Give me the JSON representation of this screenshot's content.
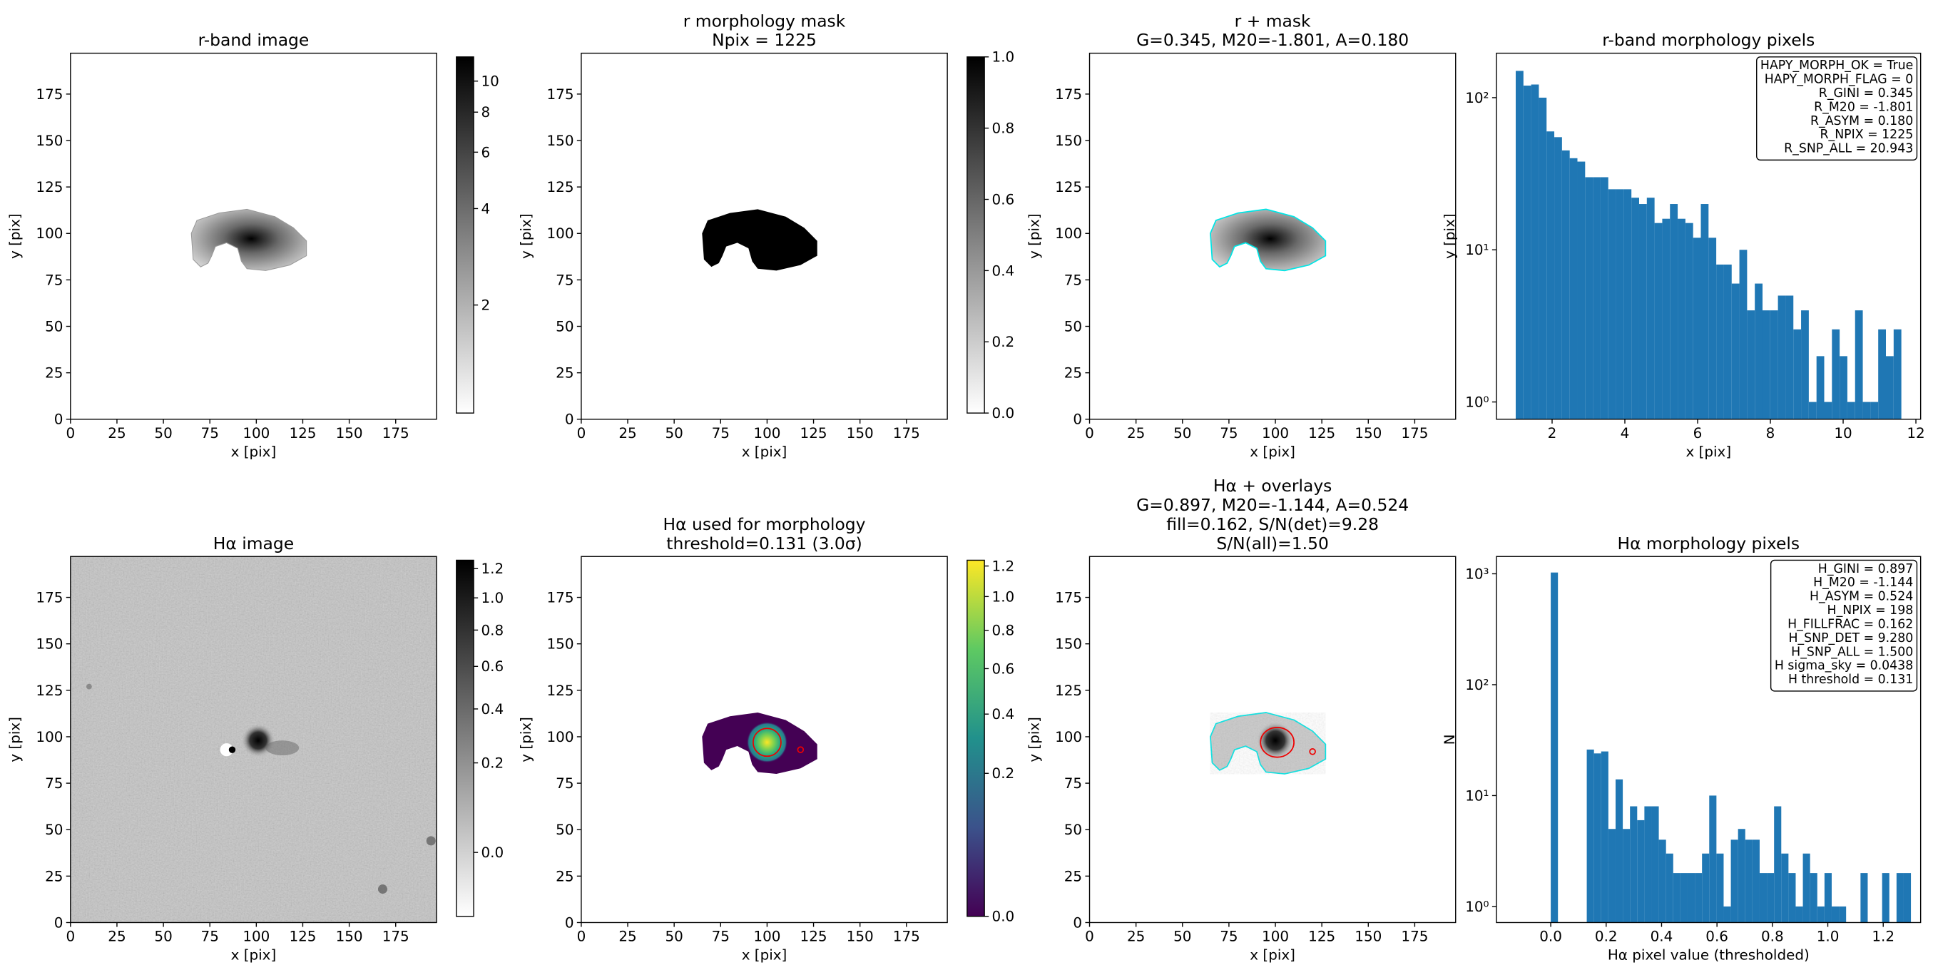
{
  "chart_data": [
    {
      "type": "image",
      "title": "r-band image",
      "xlabel": "x [pix]",
      "ylabel": "y [pix]",
      "xlim": [
        0,
        197
      ],
      "ylim": [
        0,
        197
      ],
      "xticks": [
        0,
        25,
        50,
        75,
        100,
        125,
        150,
        175
      ],
      "yticks": [
        0,
        25,
        50,
        75,
        100,
        125,
        150,
        175
      ],
      "colorbar": {
        "cmap": "gray_r",
        "scale": "log",
        "lim": [
          0.92,
          11.9
        ],
        "ticks": [
          2,
          4,
          6,
          8,
          10
        ]
      }
    },
    {
      "type": "image",
      "title": [
        "r morphology mask",
        "Npix = 1225"
      ],
      "xlabel": "x [pix]",
      "ylabel": "y [pix]",
      "xlim": [
        0,
        197
      ],
      "ylim": [
        0,
        197
      ],
      "xticks": [
        0,
        25,
        50,
        75,
        100,
        125,
        150,
        175
      ],
      "yticks": [
        0,
        25,
        50,
        75,
        100,
        125,
        150,
        175
      ],
      "colorbar": {
        "cmap": "gray_r",
        "scale": "linear",
        "lim": [
          0,
          1
        ],
        "ticks": [
          {
            "value": 0,
            "label": "0.0"
          },
          0.2,
          0.4,
          0.6,
          0.8,
          {
            "value": 1,
            "label": "1.0"
          }
        ]
      }
    },
    {
      "type": "image",
      "title": [
        "r + mask",
        "G=0.345, M20=-1.801, A=0.180"
      ],
      "xlabel": "x [pix]",
      "ylabel": "y [pix]",
      "xlim": [
        0,
        197
      ],
      "ylim": [
        0,
        197
      ],
      "xticks": [
        0,
        25,
        50,
        75,
        100,
        125,
        150,
        175
      ],
      "yticks": [
        0,
        25,
        50,
        75,
        100,
        125,
        150,
        175
      ]
    },
    {
      "type": "histogram",
      "title": "r-band morphology pixels",
      "xlabel": "x [pix]",
      "ylabel": "y [pix]",
      "color": "#1f77b4",
      "yscale": "log",
      "xlim": [
        0.47,
        12.13
      ],
      "ylim": [
        0.77,
        196
      ],
      "xticks": [
        2,
        4,
        6,
        8,
        10,
        12
      ],
      "yticks": [
        {
          "value": 1,
          "label": "10⁰"
        },
        {
          "value": 10,
          "label": "10¹"
        },
        {
          "value": 100,
          "label": "10²"
        }
      ],
      "bins": [
        1.0,
        1.212,
        1.424,
        1.636,
        1.848,
        2.06,
        2.272,
        2.484,
        2.696,
        2.908,
        3.12,
        3.332,
        3.544,
        3.756,
        3.968,
        4.18,
        4.392,
        4.604,
        4.816,
        5.028,
        5.24,
        5.452,
        5.664,
        5.876,
        6.088,
        6.3,
        6.512,
        6.724,
        6.936,
        7.148,
        7.36,
        7.572,
        7.784,
        7.996,
        8.208,
        8.42,
        8.632,
        8.844,
        9.056,
        9.268,
        9.48,
        9.692,
        9.904,
        10.116,
        10.328,
        10.54,
        10.752,
        10.964,
        11.176,
        11.388,
        11.6
      ],
      "counts": [
        150,
        120,
        122,
        100,
        60,
        55,
        45,
        40,
        38,
        30,
        30,
        30,
        25,
        25,
        25,
        22,
        20,
        22,
        15,
        16,
        20,
        16,
        15,
        12,
        20,
        12,
        8,
        8,
        6,
        10,
        4,
        6,
        4,
        4,
        5,
        5,
        3,
        4,
        1,
        2,
        1,
        3,
        2,
        1,
        4,
        1,
        1,
        3,
        2,
        3
      ],
      "annotation": [
        "HAPY_MORPH_OK = True",
        "HAPY_MORPH_FLAG = 0",
        "R_GINI = 0.345",
        "R_M20 = -1.801",
        "R_ASYM = 0.180",
        "R_NPIX = 1225",
        "R_SNP_ALL = 20.943"
      ]
    },
    {
      "type": "image",
      "title": "Hα image",
      "xlabel": "x [pix]",
      "ylabel": "y [pix]",
      "xlim": [
        0,
        197
      ],
      "ylim": [
        0,
        197
      ],
      "xticks": [
        0,
        25,
        50,
        75,
        100,
        125,
        150,
        175
      ],
      "yticks": [
        0,
        25,
        50,
        75,
        100,
        125,
        150,
        175
      ],
      "colorbar": {
        "cmap": "gray_r",
        "scale": "sqrt",
        "lim": [
          -0.042,
          1.261
        ],
        "ticks": [
          {
            "value": 0,
            "label": "0.0"
          },
          0.2,
          0.4,
          0.6,
          0.8,
          {
            "value": 1,
            "label": "1.0"
          },
          1.2
        ]
      }
    },
    {
      "type": "image",
      "title": [
        "Hα used for morphology",
        "threshold=0.131 (3.0σ)"
      ],
      "xlabel": "x [pix]",
      "ylabel": "y [pix]",
      "xlim": [
        0,
        197
      ],
      "ylim": [
        0,
        197
      ],
      "xticks": [
        0,
        25,
        50,
        75,
        100,
        125,
        150,
        175
      ],
      "yticks": [
        0,
        25,
        50,
        75,
        100,
        125,
        150,
        175
      ],
      "colorbar": {
        "cmap": "viridis",
        "scale": "sqrt",
        "lim": [
          0,
          1.24
        ],
        "ticks": [
          {
            "value": 0,
            "label": "0.0"
          },
          0.2,
          0.4,
          0.6,
          0.8,
          {
            "value": 1,
            "label": "1.0"
          },
          1.2
        ]
      }
    },
    {
      "type": "image",
      "title": [
        "Hα + overlays",
        "G=0.897, M20=-1.144, A=0.524",
        "fill=0.162, S/N(det)=9.28",
        "S/N(all)=1.50"
      ],
      "xlabel": "x [pix]",
      "ylabel": "y [pix]",
      "xlim": [
        0,
        197
      ],
      "ylim": [
        0,
        197
      ],
      "xticks": [
        0,
        25,
        50,
        75,
        100,
        125,
        150,
        175
      ],
      "yticks": [
        0,
        25,
        50,
        75,
        100,
        125,
        150,
        175
      ]
    },
    {
      "type": "histogram",
      "title": "Hα morphology pixels",
      "xlabel": "Hα pixel value (thresholded)",
      "ylabel": "N",
      "color": "#1f77b4",
      "yscale": "log",
      "xlim": [
        -0.196,
        1.335
      ],
      "ylim": [
        0.716,
        1432
      ],
      "xticks": [
        {
          "value": 0,
          "label": "0.0"
        },
        0.2,
        0.4,
        0.6,
        0.8,
        {
          "value": 1,
          "label": "1.0"
        },
        1.2
      ],
      "yticks": [
        {
          "value": 1,
          "label": "10⁰"
        },
        {
          "value": 10,
          "label": "10¹"
        },
        {
          "value": 100,
          "label": "10²"
        },
        {
          "value": 1000,
          "label": "10³"
        }
      ],
      "bins": [
        0,
        0.026,
        0.052,
        0.078,
        0.104,
        0.13,
        0.156,
        0.182,
        0.208,
        0.234,
        0.26,
        0.286,
        0.312,
        0.338,
        0.364,
        0.39,
        0.416,
        0.442,
        0.468,
        0.494,
        0.52,
        0.546,
        0.572,
        0.598,
        0.624,
        0.65,
        0.676,
        0.702,
        0.728,
        0.754,
        0.78,
        0.806,
        0.832,
        0.858,
        0.884,
        0.91,
        0.936,
        0.962,
        0.988,
        1.014,
        1.04,
        1.066,
        1.092,
        1.118,
        1.144,
        1.17,
        1.196,
        1.222,
        1.248,
        1.274,
        1.3
      ],
      "counts": [
        1027,
        0,
        0,
        0,
        0,
        26,
        24,
        25,
        5,
        14,
        5,
        8,
        6,
        8,
        8,
        4,
        3,
        2,
        2,
        2,
        2,
        3,
        10,
        3,
        1,
        4,
        5,
        4,
        4,
        2,
        2,
        8,
        3,
        2,
        1,
        3,
        2,
        1,
        2,
        1,
        1,
        0,
        0,
        2,
        0,
        0,
        2,
        0,
        2,
        2
      ],
      "annotation": [
        "H_GINI = 0.897",
        "H_M20 = -1.144",
        "H_ASYM = 0.524",
        "H_NPIX = 198",
        "H_FILLFRAC = 0.162",
        "H_SNP_DET = 9.280",
        "H_SNP_ALL = 1.500",
        "H sigma_sky = 0.0438",
        "H threshold = 0.131"
      ]
    }
  ]
}
